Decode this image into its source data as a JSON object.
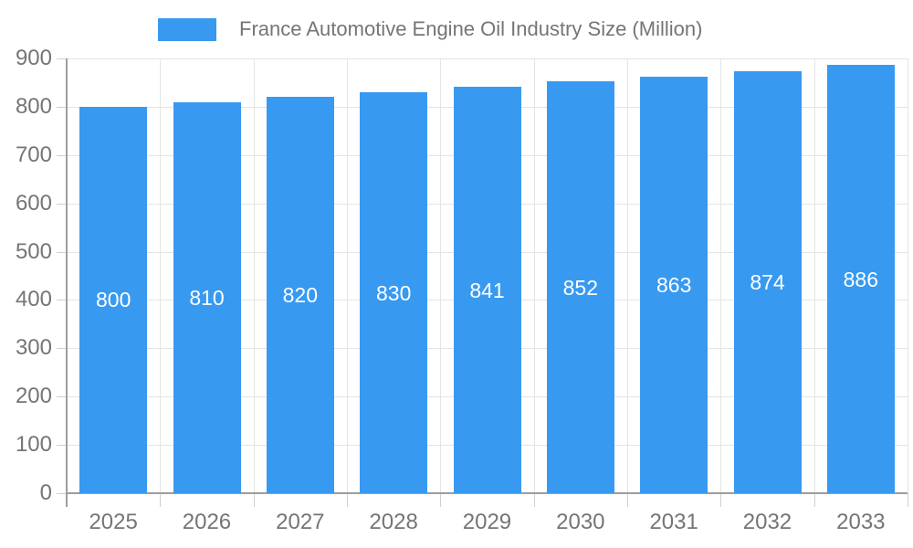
{
  "chart_data": {
    "type": "bar",
    "title": "France Automotive Engine Oil Industry Size (Million)",
    "categories": [
      "2025",
      "2026",
      "2027",
      "2028",
      "2029",
      "2030",
      "2031",
      "2032",
      "2033"
    ],
    "series": [
      {
        "name": "France Automotive Engine Oil Industry Size (Million)",
        "values": [
          800,
          810,
          820,
          830,
          841,
          852,
          863,
          874,
          886
        ]
      }
    ],
    "value_labels": [
      "800",
      "810",
      "820",
      "830",
      "841",
      "852",
      "863",
      "874",
      "886"
    ],
    "xlabel": "",
    "ylabel": "",
    "ylim": [
      0,
      900
    ],
    "ytick_interval": 100,
    "yticks": [
      0,
      100,
      200,
      300,
      400,
      500,
      600,
      700,
      800,
      900
    ],
    "grid": "on",
    "legend_position": "top",
    "colors": {
      "bar": "#3899F0",
      "value_label": "#FFFFFF",
      "axis_text": "#757575",
      "axis_line": "#9E9E9E",
      "gridline": "#E4E4E4",
      "tick": "#CFCFCF",
      "background": "#FFFFFF"
    }
  }
}
